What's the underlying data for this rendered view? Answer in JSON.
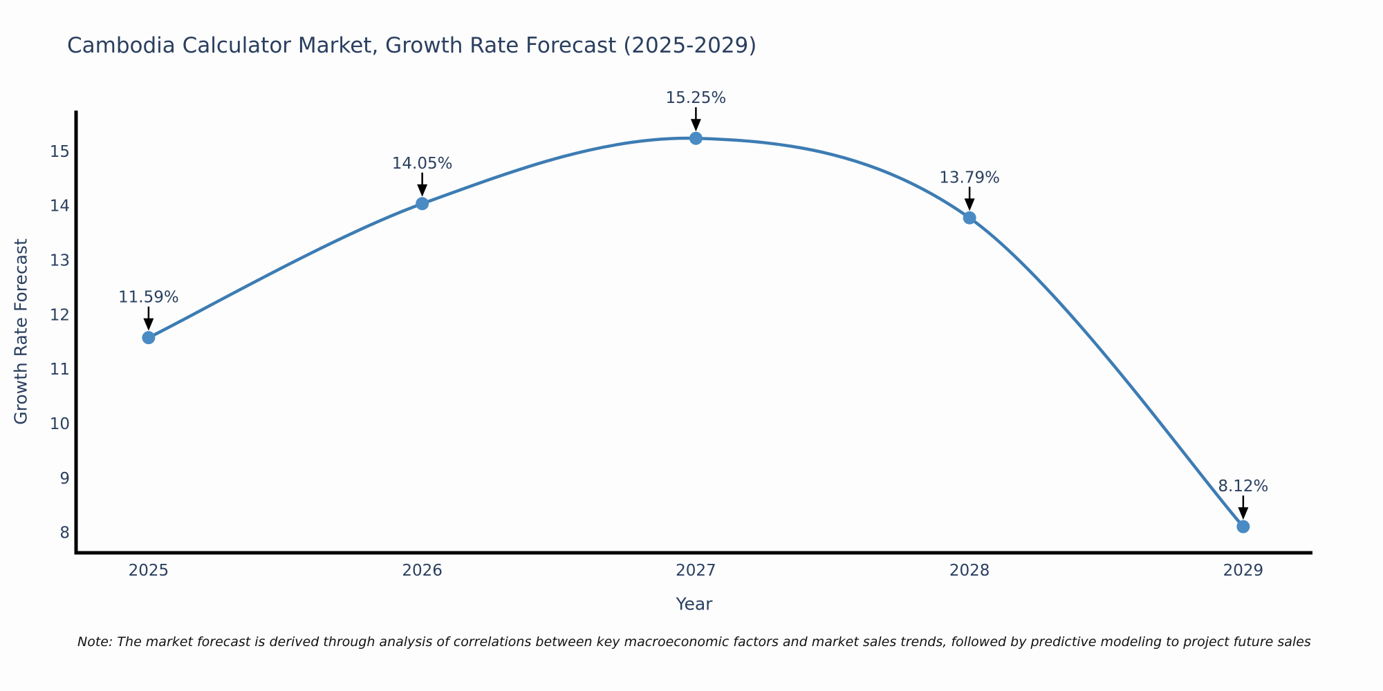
{
  "note": {
    "text": "Note: The market forecast is derived through analysis of correlations between key macroeconomic factors and market sales trends, followed by predictive modeling to project future sales"
  },
  "chart_data": {
    "type": "line",
    "title": "Cambodia Calculator Market, Growth Rate Forecast (2025-2029)",
    "xlabel": "Year",
    "ylabel": "Growth Rate Forecast",
    "x": [
      2025,
      2026,
      2027,
      2028,
      2029
    ],
    "values": [
      11.59,
      14.05,
      15.25,
      13.79,
      8.12
    ],
    "point_labels": [
      "11.59%",
      "14.05%",
      "15.25%",
      "13.79%",
      "8.12%"
    ],
    "yticks": [
      8,
      9,
      10,
      11,
      12,
      13,
      14,
      15
    ],
    "xlim": [
      2024.735,
      2029.253
    ],
    "ylim": [
      7.64,
      15.76
    ],
    "line_shape": "spline",
    "grid": false,
    "legend": "none",
    "colors": {
      "line": "#3d7cb3",
      "marker": "#4a8bc4",
      "axis": "#000000",
      "tick_text": "#2a3f5f",
      "annotation_text": "#2a3f5f",
      "arrow": "#000000",
      "background": "#fdfdfd"
    }
  }
}
